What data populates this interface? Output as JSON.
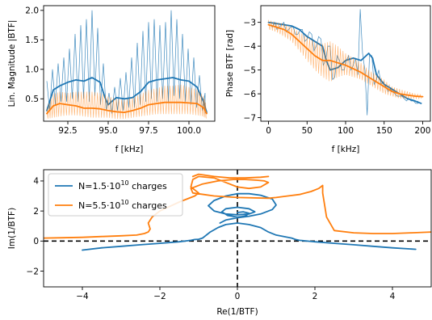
{
  "colors": {
    "blue": "#1f77b4",
    "orange": "#ff7f0e",
    "axis": "#000000",
    "legend_border": "#cccccc"
  },
  "chart_data": [
    {
      "type": "line",
      "title": "",
      "xlabel": "f [kHz]",
      "ylabel": "Lin. Magnitude |BTF|",
      "xlim": [
        91.0,
        101.6
      ],
      "ylim": [
        0.12,
        2.08
      ],
      "xticks": [
        92.5,
        95.0,
        97.5,
        100.0
      ],
      "xtick_labels": [
        "92.5",
        "95.0",
        "97.5",
        "100.0"
      ],
      "yticks": [
        0.5,
        1.0,
        1.5,
        2.0
      ],
      "ytick_labels": [
        "0.5",
        "1.0",
        "1.5",
        "2.0"
      ],
      "grid": false,
      "series": [
        {
          "color": "blue",
          "style": "smoothed-thick",
          "x": [
            91.2,
            91.6,
            92.0,
            92.5,
            93.0,
            93.5,
            94.0,
            94.5,
            94.8,
            95.0,
            95.2,
            95.5,
            96.0,
            96.5,
            97.0,
            97.5,
            98.0,
            98.5,
            99.0,
            99.5,
            100.0,
            100.5,
            100.9,
            101.1
          ],
          "y": [
            0.3,
            0.65,
            0.72,
            0.78,
            0.82,
            0.8,
            0.86,
            0.78,
            0.52,
            0.4,
            0.45,
            0.52,
            0.5,
            0.52,
            0.62,
            0.78,
            0.82,
            0.84,
            0.86,
            0.82,
            0.8,
            0.7,
            0.45,
            0.27
          ]
        },
        {
          "color": "blue",
          "style": "raw-thin",
          "x": [
            91.2,
            91.55,
            91.9,
            92.25,
            92.6,
            92.95,
            93.3,
            93.65,
            94.0,
            94.35,
            94.7,
            95.05,
            95.4,
            95.75,
            96.1,
            96.45,
            96.8,
            97.15,
            97.5,
            97.85,
            98.2,
            98.55,
            98.9,
            99.25,
            99.6,
            99.95,
            100.3,
            100.65,
            101.0
          ],
          "y": [
            0.8,
            1.0,
            1.1,
            1.2,
            1.35,
            1.6,
            1.75,
            1.85,
            2.0,
            1.7,
            1.1,
            0.6,
            0.7,
            0.85,
            0.95,
            1.2,
            1.45,
            1.65,
            1.8,
            1.85,
            1.75,
            1.8,
            2.0,
            1.85,
            1.6,
            1.35,
            1.2,
            0.9,
            0.6
          ],
          "y_low": [
            0.3,
            0.4,
            0.45,
            0.45,
            0.5,
            0.45,
            0.5,
            0.45,
            0.55,
            0.4,
            0.3,
            0.25,
            0.3,
            0.3,
            0.35,
            0.35,
            0.4,
            0.45,
            0.5,
            0.45,
            0.5,
            0.45,
            0.55,
            0.5,
            0.45,
            0.4,
            0.35,
            0.3,
            0.25
          ]
        },
        {
          "color": "orange",
          "style": "smoothed-thick",
          "x": [
            91.2,
            91.6,
            92.0,
            92.5,
            93.0,
            93.5,
            94.0,
            94.5,
            95.0,
            95.5,
            96.0,
            96.5,
            97.0,
            97.5,
            98.0,
            98.5,
            99.0,
            99.5,
            100.0,
            100.5,
            100.9,
            101.1
          ],
          "y": [
            0.25,
            0.38,
            0.42,
            0.4,
            0.38,
            0.34,
            0.34,
            0.33,
            0.3,
            0.28,
            0.27,
            0.3,
            0.34,
            0.4,
            0.42,
            0.44,
            0.44,
            0.44,
            0.43,
            0.42,
            0.35,
            0.25
          ],
          "band_low": [
            0.16,
            0.18,
            0.2,
            0.22,
            0.22,
            0.2,
            0.18,
            0.18,
            0.18,
            0.16,
            0.16,
            0.18,
            0.2,
            0.22,
            0.24,
            0.24,
            0.24,
            0.24,
            0.24,
            0.22,
            0.2,
            0.16
          ],
          "band_high": [
            0.35,
            0.58,
            0.62,
            0.6,
            0.62,
            0.62,
            0.62,
            0.6,
            0.54,
            0.5,
            0.48,
            0.52,
            0.58,
            0.65,
            0.68,
            0.72,
            0.72,
            0.74,
            0.7,
            0.66,
            0.55,
            0.38
          ]
        }
      ]
    },
    {
      "type": "line",
      "title": "",
      "xlabel": "f [kHz]",
      "ylabel": "Phase BTF [rad]",
      "xlim": [
        -10,
        210
      ],
      "ylim": [
        -7.15,
        -2.3
      ],
      "xticks": [
        0,
        50,
        100,
        150,
        200
      ],
      "xtick_labels": [
        "0",
        "50",
        "100",
        "150",
        "200"
      ],
      "yticks": [
        -3,
        -4,
        -5,
        -6,
        -7
      ],
      "ytick_labels": [
        "−3",
        "−4",
        "−5",
        "−6",
        "−7"
      ],
      "grid": false,
      "series": [
        {
          "color": "blue",
          "style": "smoothed-thick",
          "x": [
            0,
            10,
            20,
            30,
            40,
            50,
            60,
            70,
            75,
            80,
            90,
            100,
            110,
            120,
            130,
            135,
            140,
            150,
            160,
            170,
            180,
            190,
            198
          ],
          "y": [
            -3.0,
            -3.05,
            -3.1,
            -3.15,
            -3.3,
            -3.6,
            -3.8,
            -4.0,
            -4.6,
            -5.0,
            -4.9,
            -4.6,
            -4.5,
            -4.6,
            -4.3,
            -4.5,
            -5.2,
            -5.6,
            -5.8,
            -6.0,
            -6.2,
            -6.3,
            -6.4
          ]
        },
        {
          "color": "blue",
          "style": "raw-thin",
          "x": [
            2,
            8,
            14,
            20,
            26,
            32,
            38,
            44,
            50,
            56,
            62,
            68,
            74,
            80,
            86,
            92,
            98,
            104,
            110,
            116,
            122,
            128,
            134,
            140,
            146,
            152,
            158,
            164,
            170,
            176,
            182,
            188,
            194
          ],
          "y": [
            -3.1,
            -3.0,
            -3.2,
            -3.0,
            -3.3,
            -3.2,
            -3.5,
            -3.3,
            -3.7,
            -3.5,
            -4.0,
            -3.7,
            -4.6,
            -4.0,
            -5.3,
            -4.6,
            -5.0,
            -4.4,
            -4.8,
            -5.2,
            -4.3,
            -6.9,
            -4.4,
            -5.4,
            -5.6,
            -5.7,
            -5.8,
            -6.0,
            -6.1,
            -6.2,
            -6.2,
            -6.3,
            -6.4
          ],
          "y_alt": [
            -3.2,
            -3.3,
            -3.1,
            -3.4,
            -3.2,
            -3.5,
            -3.3,
            -3.8,
            -3.4,
            -4.2,
            -3.6,
            -4.8,
            -4.0,
            -5.4,
            -4.4,
            -5.0,
            -4.6,
            -5.0,
            -4.5,
            -2.45,
            -5.0,
            -4.4,
            -5.6,
            -5.0,
            -5.5,
            -5.9,
            -5.9,
            -6.1,
            -6.1,
            -6.3,
            -6.3,
            -6.4,
            -6.3
          ]
        },
        {
          "color": "orange",
          "style": "smoothed-thick",
          "x": [
            0,
            10,
            20,
            30,
            40,
            50,
            60,
            70,
            80,
            90,
            100,
            110,
            120,
            130,
            140,
            150,
            160,
            170,
            180,
            190,
            200
          ],
          "y": [
            -3.1,
            -3.2,
            -3.3,
            -3.5,
            -3.8,
            -4.1,
            -4.4,
            -4.6,
            -4.6,
            -4.7,
            -4.8,
            -4.95,
            -5.1,
            -5.3,
            -5.5,
            -5.7,
            -5.9,
            -6.0,
            -6.05,
            -6.1,
            -6.12
          ],
          "band_low": [
            -3.3,
            -3.4,
            -3.6,
            -3.8,
            -4.2,
            -4.6,
            -5.0,
            -5.3,
            -5.5,
            -5.3,
            -5.2,
            -5.3,
            -5.4,
            -5.6,
            -5.8,
            -6.0,
            -6.1,
            -6.2,
            -6.2,
            -6.2,
            -6.2
          ],
          "band_high": [
            -2.9,
            -3.0,
            -3.05,
            -3.2,
            -3.4,
            -3.6,
            -3.8,
            -3.9,
            -3.8,
            -4.0,
            -4.3,
            -4.5,
            -4.7,
            -5.0,
            -5.2,
            -5.4,
            -5.7,
            -5.8,
            -5.9,
            -6.0,
            -6.05
          ]
        }
      ]
    },
    {
      "type": "line",
      "title": "",
      "xlabel": "Re(1/BTF)",
      "ylabel": "Im(1/BTF)",
      "xlim": [
        -5,
        5
      ],
      "ylim": [
        -3.05,
        4.75
      ],
      "xticks": [
        -4,
        -2,
        0,
        2,
        4
      ],
      "xtick_labels": [
        "−4",
        "−2",
        "0",
        "2",
        "4"
      ],
      "yticks": [
        -2,
        0,
        2,
        4
      ],
      "ytick_labels": [
        "−2",
        "0",
        "2",
        "4"
      ],
      "grid": false,
      "reference_lines": {
        "x0": 0,
        "y0": 0,
        "style": "dashed"
      },
      "legend": {
        "placement": "upper-left",
        "entries": [
          {
            "color": "blue",
            "prefix": "N=1.5·10",
            "exponent": "10",
            "suffix": " charges"
          },
          {
            "color": "orange",
            "prefix": "N=5.5·10",
            "exponent": "10",
            "suffix": " charges"
          }
        ]
      },
      "series": [
        {
          "color": "blue",
          "x": [
            -4.0,
            -3.5,
            -3.0,
            -2.5,
            -2.0,
            -1.5,
            -1.2,
            -1.1,
            -1.0,
            -0.9,
            -0.8,
            -0.7,
            -0.5,
            -0.3,
            0.0,
            0.3,
            0.6,
            0.8,
            1.0,
            1.2,
            1.4,
            1.5,
            1.6,
            1.8,
            2.0,
            2.5,
            3.0,
            3.5,
            4.0,
            4.6
          ],
          "y": [
            -0.6,
            -0.45,
            -0.35,
            -0.25,
            -0.15,
            -0.05,
            0.05,
            0.1,
            0.12,
            0.2,
            0.4,
            0.6,
            0.9,
            1.1,
            1.2,
            1.1,
            0.9,
            0.6,
            0.4,
            0.3,
            0.2,
            0.1,
            0.05,
            0.0,
            -0.05,
            -0.15,
            -0.25,
            -0.35,
            -0.45,
            -0.55
          ]
        },
        {
          "color": "blue",
          "x": [
            -0.45,
            -0.3,
            0.0,
            0.3,
            0.6,
            0.9,
            1.0,
            0.9,
            0.6,
            0.3,
            0.0,
            -0.3,
            -0.6,
            -0.75,
            -0.6,
            -0.3,
            0.0,
            0.3,
            0.45,
            0.3,
            0.0,
            -0.3,
            -0.4,
            -0.25,
            0.0,
            0.2,
            0.3,
            0.15,
            0.0
          ],
          "y": [
            1.2,
            1.4,
            1.55,
            1.65,
            1.8,
            2.1,
            2.4,
            2.8,
            3.05,
            3.15,
            3.15,
            3.0,
            2.7,
            2.35,
            2.0,
            1.8,
            1.75,
            1.8,
            1.95,
            2.15,
            2.25,
            2.15,
            1.95,
            1.7,
            1.6,
            1.65,
            1.85,
            1.95,
            1.9
          ]
        },
        {
          "color": "orange",
          "x": [
            -5.0,
            -4.5,
            -4.0,
            -3.5,
            -3.0,
            -2.6,
            -2.4,
            -2.3,
            -2.25,
            -2.3,
            -2.2,
            -2.0,
            -1.5,
            -1.1,
            -1.0,
            -1.2,
            -1.15,
            -1.0,
            -0.6,
            -0.3,
            0.0,
            0.3,
            0.6,
            0.8,
            0.7,
            0.5,
            0.2,
            -0.1,
            -0.5,
            -0.9,
            -1.2,
            -1.15,
            -0.6,
            0.0,
            0.8,
            1.0,
            1.3,
            1.6,
            1.9,
            2.1,
            2.2,
            2.2,
            2.3,
            2.5,
            3.0,
            3.5,
            4.0,
            4.5,
            5.0
          ],
          "y": [
            0.2,
            0.22,
            0.25,
            0.3,
            0.35,
            0.4,
            0.5,
            0.6,
            0.8,
            1.2,
            1.6,
            2.0,
            2.6,
            3.0,
            3.2,
            3.6,
            4.1,
            4.3,
            4.2,
            3.9,
            3.6,
            3.5,
            3.6,
            3.9,
            4.0,
            4.05,
            4.1,
            4.1,
            4.0,
            3.8,
            3.5,
            3.2,
            3.0,
            2.9,
            2.85,
            2.9,
            3.0,
            3.1,
            3.3,
            3.5,
            3.7,
            3.2,
            1.6,
            0.7,
            0.55,
            0.5,
            0.5,
            0.55,
            0.6
          ]
        },
        {
          "color": "orange",
          "x": [
            -1.15,
            -1.0,
            -0.6,
            -0.2,
            0.2,
            0.6,
            0.8
          ],
          "y": [
            4.3,
            4.45,
            4.3,
            4.2,
            4.2,
            4.25,
            4.3
          ]
        }
      ]
    }
  ]
}
